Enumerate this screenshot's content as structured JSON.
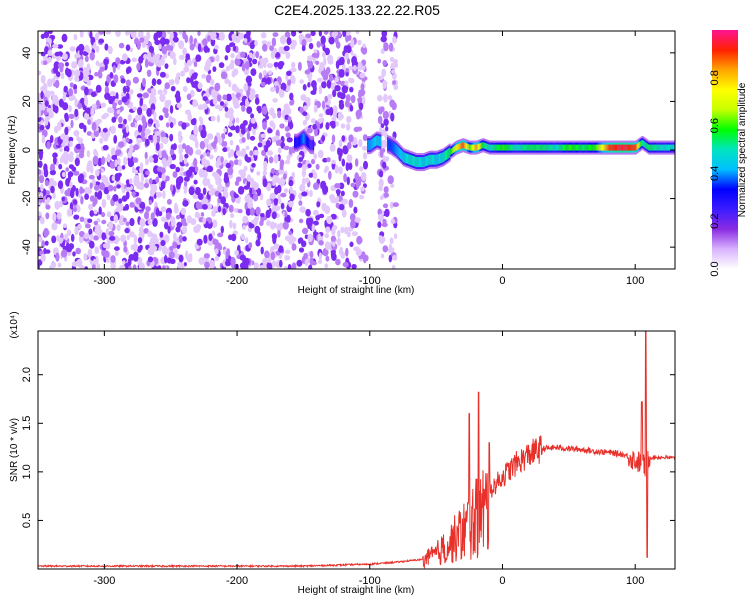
{
  "title": "C2E4.2025.133.22.22.R05",
  "chart_data": [
    {
      "type": "heatmap",
      "title": "C2E4.2025.133.22.22.R05",
      "xlabel": "Height of straight line (km)",
      "ylabel": "Frequency (Hz)",
      "xlim": [
        -350,
        130
      ],
      "ylim": [
        -49,
        49
      ],
      "x_ticks": [
        -300,
        -200,
        -100,
        0,
        100
      ],
      "y_ticks": [
        -40,
        -20,
        0,
        20,
        40
      ],
      "colorbar": {
        "label": "Normalized spectral amplitude",
        "range": [
          0,
          1
        ],
        "ticks": [
          0.0,
          0.2,
          0.4,
          0.6,
          0.8
        ],
        "tick_labels": [
          "0.0",
          "0.2",
          "0.4",
          "0.6",
          "0.8"
        ],
        "colormap": [
          "#ffffff",
          "#d9b3ff",
          "#8a2be2",
          "#3b1cff",
          "#0000ff",
          "#00bfff",
          "#00e5c0",
          "#00ff00",
          "#c8ff00",
          "#ffff00",
          "#ffa500",
          "#ff2000",
          "#ff1493"
        ]
      },
      "noise_region": {
        "x_range": [
          -350,
          -80
        ],
        "gaps": [
          [
            -157,
            -153
          ],
          [
            -103,
            -93
          ],
          [
            -87,
            -85
          ]
        ]
      },
      "signal_track": {
        "x": [
          -155,
          -150,
          -145,
          -100,
          -95,
          -85,
          -80,
          -75,
          -70,
          -65,
          -60,
          -55,
          -50,
          -45,
          -40,
          -35,
          -30,
          -25,
          -20,
          -15,
          -10,
          -5,
          0,
          10,
          20,
          30,
          40,
          50,
          60,
          70,
          80,
          90,
          100,
          105,
          110,
          120,
          130
        ],
        "freq_hz": [
          3,
          5,
          2,
          2,
          4,
          2,
          0,
          -3,
          -4,
          -5,
          -5,
          -4,
          -4,
          -3,
          -1,
          1,
          2,
          1,
          1,
          2,
          1,
          1,
          1,
          1,
          1,
          1,
          1,
          1,
          1,
          1,
          1,
          1,
          1,
          3,
          1,
          1,
          1
        ],
        "amplitude": [
          0.3,
          0.4,
          0.25,
          0.4,
          0.45,
          0.35,
          0.4,
          0.45,
          0.5,
          0.5,
          0.45,
          0.5,
          0.45,
          0.5,
          0.55,
          0.75,
          0.9,
          0.6,
          0.85,
          0.55,
          0.5,
          0.55,
          0.6,
          0.5,
          0.55,
          0.55,
          0.5,
          0.6,
          0.55,
          0.6,
          0.9,
          0.95,
          0.9,
          0.5,
          0.55,
          0.5,
          0.5
        ]
      }
    },
    {
      "type": "line",
      "xlabel": "Height of straight line (km)",
      "ylabel": "SNR (10 * v/v)",
      "y_multiplier": "(x10⁴)",
      "xlim": [
        -350,
        130
      ],
      "ylim": [
        0,
        2.45
      ],
      "x_ticks": [
        -300,
        -200,
        -100,
        0,
        100
      ],
      "y_ticks": [
        0.5,
        1.0,
        1.5,
        2.0
      ],
      "y_tick_labels": [
        "0.5",
        "1.0",
        "1.5",
        "2.0"
      ],
      "series_color": "#e8302a",
      "envelope": {
        "x": [
          -350,
          -150,
          -100,
          -80,
          -60,
          -50,
          -40,
          -30,
          -20,
          -10,
          0,
          10,
          20,
          30,
          40,
          50,
          60,
          70,
          80,
          90,
          95,
          100,
          105,
          108,
          110,
          115,
          120,
          130
        ],
        "y": [
          0.03,
          0.03,
          0.05,
          0.07,
          0.1,
          0.18,
          0.3,
          0.45,
          0.6,
          0.8,
          0.95,
          1.08,
          1.18,
          1.24,
          1.25,
          1.24,
          1.23,
          1.21,
          1.2,
          1.18,
          1.16,
          1.12,
          1.08,
          1.05,
          1.15,
          1.15,
          1.15,
          1.14
        ]
      },
      "spikes": [
        {
          "x": -25,
          "y": 1.6
        },
        {
          "x": -18,
          "y": 1.82
        },
        {
          "x": -10,
          "y": 1.3
        },
        {
          "x": 105,
          "y": 1.72
        },
        {
          "x": 108,
          "y": 2.45
        },
        {
          "x": 109,
          "y": 0.12
        }
      ]
    }
  ]
}
